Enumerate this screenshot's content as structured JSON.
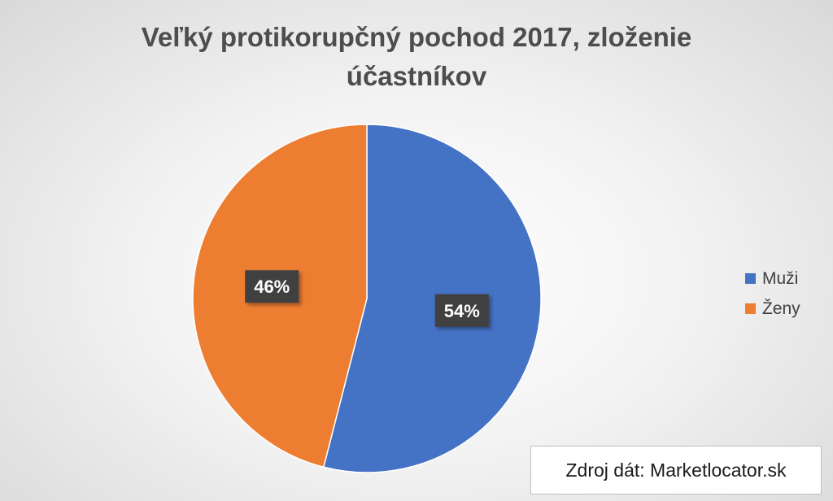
{
  "chart_data": {
    "type": "pie",
    "title_lines": [
      "Veľký protikorupčný pochod 2017, zloženie",
      "účastníkov"
    ],
    "categories": [
      "Muži",
      "Ženy"
    ],
    "values": [
      54,
      46
    ],
    "data_labels": [
      "54%",
      "46%"
    ],
    "colors": [
      "#4472C4",
      "#ED7D31"
    ],
    "legend_position": "right",
    "source_note": "Zdroj dát: Marketlocator.sk"
  }
}
